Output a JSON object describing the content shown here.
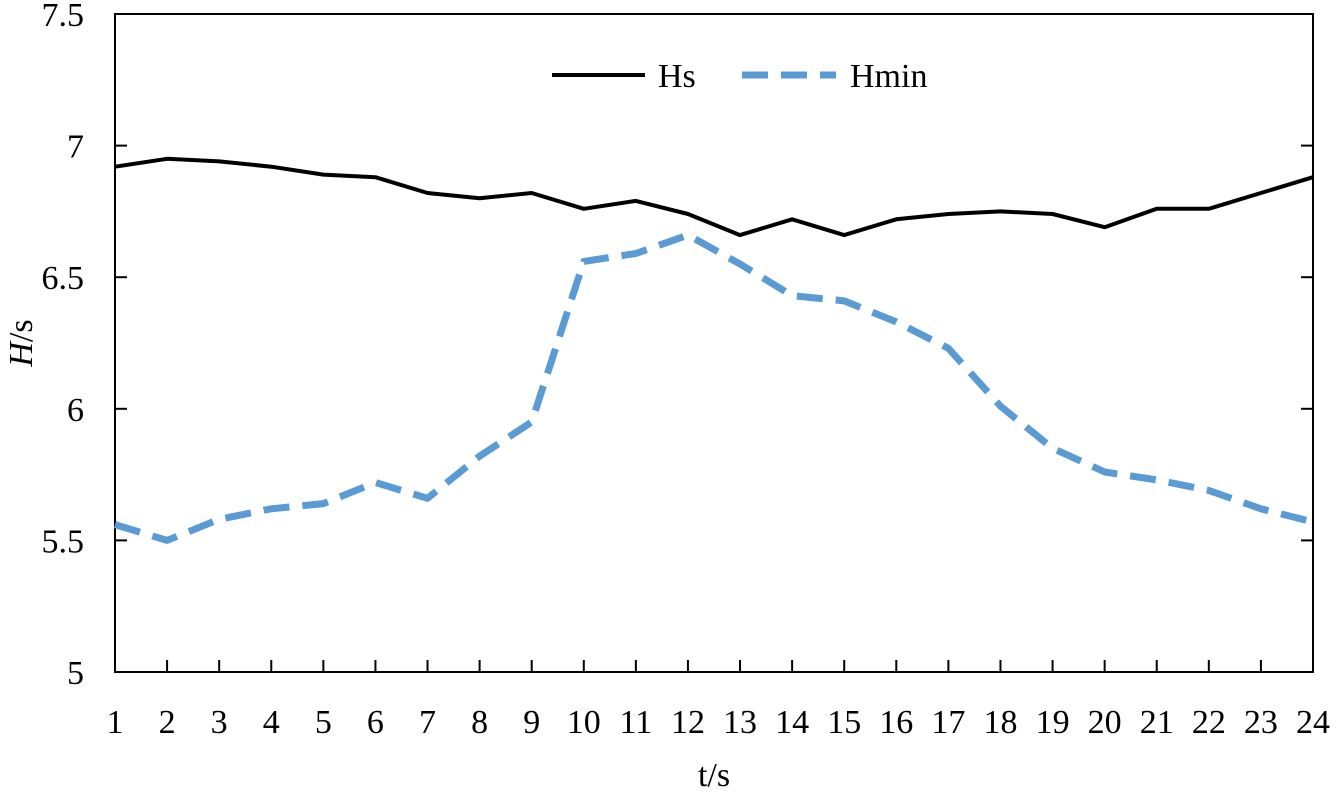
{
  "chart_data": {
    "type": "line",
    "xlabel": "t/s",
    "ylabel_italic": "H",
    "ylabel_rest": "/s",
    "x": [
      1,
      2,
      3,
      4,
      5,
      6,
      7,
      8,
      9,
      10,
      11,
      12,
      13,
      14,
      15,
      16,
      17,
      18,
      19,
      20,
      21,
      22,
      23,
      24
    ],
    "xlim": [
      1,
      24
    ],
    "ylim": [
      5,
      7.5
    ],
    "yticks": [
      5,
      5.5,
      6,
      6.5,
      7,
      7.5
    ],
    "ytick_labels": [
      "5",
      "5.5",
      "6",
      "6.5",
      "7",
      "7.5"
    ],
    "grid": false,
    "legend_position": "top-center",
    "series": [
      {
        "name": "Hs",
        "color": "#000000",
        "style": "solid",
        "values": [
          6.92,
          6.95,
          6.94,
          6.92,
          6.89,
          6.88,
          6.82,
          6.8,
          6.82,
          6.76,
          6.79,
          6.74,
          6.66,
          6.72,
          6.66,
          6.72,
          6.74,
          6.75,
          6.74,
          6.69,
          6.76,
          6.76,
          6.82,
          6.88
        ]
      },
      {
        "name": "Hmin",
        "color": "#5b9bd5",
        "style": "dashed",
        "values": [
          5.56,
          5.5,
          5.58,
          5.62,
          5.64,
          5.72,
          5.66,
          5.82,
          5.95,
          6.56,
          6.59,
          6.66,
          6.55,
          6.43,
          6.41,
          6.33,
          6.23,
          6.01,
          5.85,
          5.76,
          5.73,
          5.69,
          5.62,
          5.57
        ]
      }
    ]
  }
}
